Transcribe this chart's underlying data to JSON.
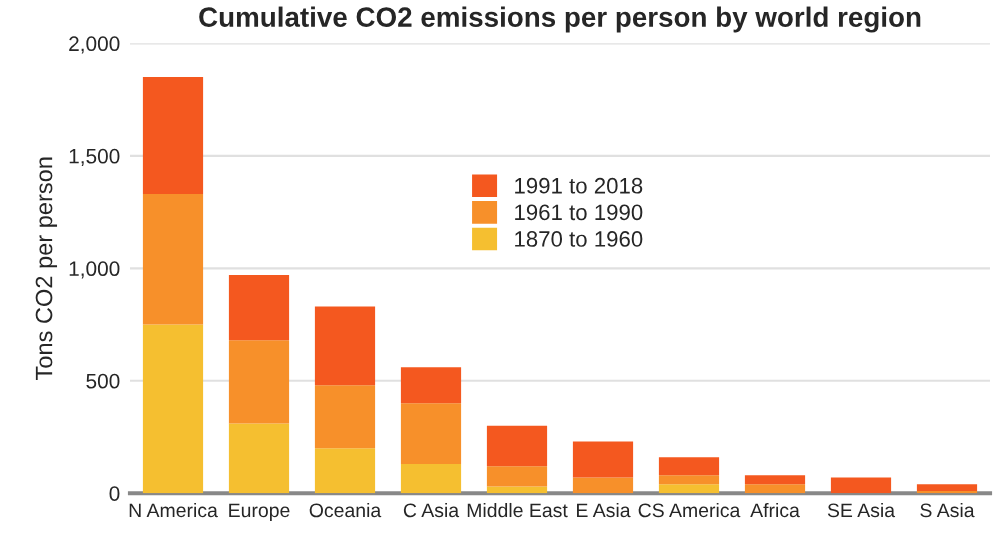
{
  "chart_data": {
    "type": "bar",
    "stacked": true,
    "title": "Cumulative CO2 emissions per person by world region",
    "ylabel": "Tons CO2 per person",
    "categories": [
      "N America",
      "Europe",
      "Oceania",
      "C Asia",
      "Middle East",
      "E Asia",
      "CS America",
      "Africa",
      "SE Asia",
      "S Asia"
    ],
    "series": [
      {
        "name": "1870 to 1960",
        "color": "#f5bf30",
        "values": [
          750,
          310,
          200,
          130,
          30,
          null,
          40,
          null,
          null,
          null
        ]
      },
      {
        "name": "1961 to 1990",
        "color": "#f7902a",
        "values": [
          580,
          370,
          280,
          270,
          90,
          70,
          40,
          40,
          null,
          10
        ]
      },
      {
        "name": "1991 to 2018",
        "color": "#f4581f",
        "values": [
          520,
          290,
          350,
          160,
          180,
          160,
          80,
          40,
          70,
          30
        ]
      }
    ],
    "ylim": [
      0,
      2000
    ],
    "yticks": [
      0,
      500,
      {
        "value": 1000,
        "label": "1,000"
      },
      {
        "value": 1500,
        "label": "1,500"
      },
      {
        "value": 2000,
        "label": "2,000"
      }
    ],
    "grid": "y",
    "legend": "top right"
  }
}
